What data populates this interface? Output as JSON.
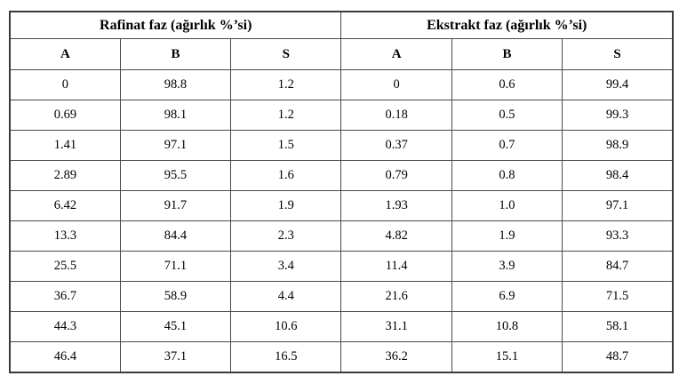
{
  "table": {
    "name": "faz-denge-tablosu",
    "groups": [
      {
        "label": "Rafinat faz (ağırlık %’si)",
        "columns": [
          "A",
          "B",
          "S"
        ]
      },
      {
        "label": "Ekstrakt faz (ağırlık %’si)",
        "columns": [
          "A",
          "B",
          "S"
        ]
      }
    ],
    "rows": [
      [
        "0",
        "98.8",
        "1.2",
        "0",
        "0.6",
        "99.4"
      ],
      [
        "0.69",
        "98.1",
        "1.2",
        "0.18",
        "0.5",
        "99.3"
      ],
      [
        "1.41",
        "97.1",
        "1.5",
        "0.37",
        "0.7",
        "98.9"
      ],
      [
        "2.89",
        "95.5",
        "1.6",
        "0.79",
        "0.8",
        "98.4"
      ],
      [
        "6.42",
        "91.7",
        "1.9",
        "1.93",
        "1.0",
        "97.1"
      ],
      [
        "13.3",
        "84.4",
        "2.3",
        "4.82",
        "1.9",
        "93.3"
      ],
      [
        "25.5",
        "71.1",
        "3.4",
        "11.4",
        "3.9",
        "84.7"
      ],
      [
        "36.7",
        "58.9",
        "4.4",
        "21.6",
        "6.9",
        "71.5"
      ],
      [
        "44.3",
        "45.1",
        "10.6",
        "31.1",
        "10.8",
        "58.1"
      ],
      [
        "46.4",
        "37.1",
        "16.5",
        "36.2",
        "15.1",
        "48.7"
      ]
    ]
  }
}
